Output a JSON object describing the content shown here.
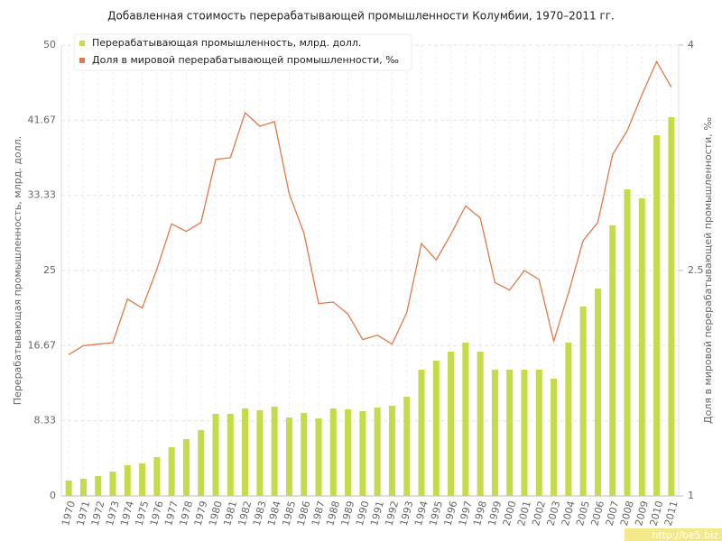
{
  "chart_data": {
    "type": "bar_line",
    "title": "Добавленная стоимость перерабатывающей промышленности Колумбии, 1970–2011 гг.",
    "y_label": "Перерабатывающая промышленность, млрд. долл.",
    "y2_label": "Доля в мировой перерабатывающей промышленности, ‰",
    "categories": [
      "1970",
      "1971",
      "1972",
      "1973",
      "1974",
      "1975",
      "1976",
      "1977",
      "1978",
      "1979",
      "1980",
      "1981",
      "1982",
      "1983",
      "1984",
      "1985",
      "1986",
      "1987",
      "1988",
      "1989",
      "1990",
      "1991",
      "1992",
      "1993",
      "1994",
      "1995",
      "1996",
      "1997",
      "1998",
      "1999",
      "2000",
      "2001",
      "2002",
      "2003",
      "2004",
      "2005",
      "2006",
      "2007",
      "2008",
      "2009",
      "2010",
      "2011"
    ],
    "series": [
      {
        "name": "Перерабатывающая промышленность, млрд. долл.",
        "color": "#c2dc4a",
        "kind": "bar",
        "values": [
          1.7,
          1.9,
          2.2,
          2.7,
          3.4,
          3.6,
          4.3,
          5.4,
          6.3,
          7.3,
          9.1,
          9.1,
          9.7,
          9.5,
          9.9,
          8.7,
          9.2,
          8.6,
          9.7,
          9.6,
          9.4,
          9.8,
          10,
          11,
          14,
          15,
          16,
          17,
          16,
          14,
          14,
          14,
          14,
          13,
          17,
          21,
          23,
          30,
          34,
          33,
          40,
          42
        ]
      },
      {
        "name": "Доля в мировой перерабатывающей промышленности, ‰",
        "color": "#e07a4a",
        "kind": "line",
        "axis": "y2",
        "values": [
          1.94,
          2.0,
          2.01,
          2.02,
          2.31,
          2.25,
          2.51,
          2.81,
          2.76,
          2.82,
          3.24,
          3.25,
          3.55,
          3.46,
          3.49,
          3.01,
          2.75,
          2.28,
          2.29,
          2.21,
          2.04,
          2.07,
          2.01,
          2.22,
          2.68,
          2.57,
          2.74,
          2.93,
          2.85,
          2.42,
          2.37,
          2.5,
          2.44,
          2.03,
          2.35,
          2.7,
          2.82,
          3.27,
          3.43,
          3.67,
          3.89,
          3.72
        ]
      }
    ],
    "ylim": [
      0,
      50
    ],
    "yticks": [
      0,
      8.33,
      16.67,
      25,
      33.33,
      41.67,
      50
    ],
    "y2lim": [
      1,
      4
    ],
    "y2ticks": [
      1,
      2.5,
      4
    ],
    "grid": true,
    "legend": "top-left",
    "watermark": "http://be5.biz"
  }
}
